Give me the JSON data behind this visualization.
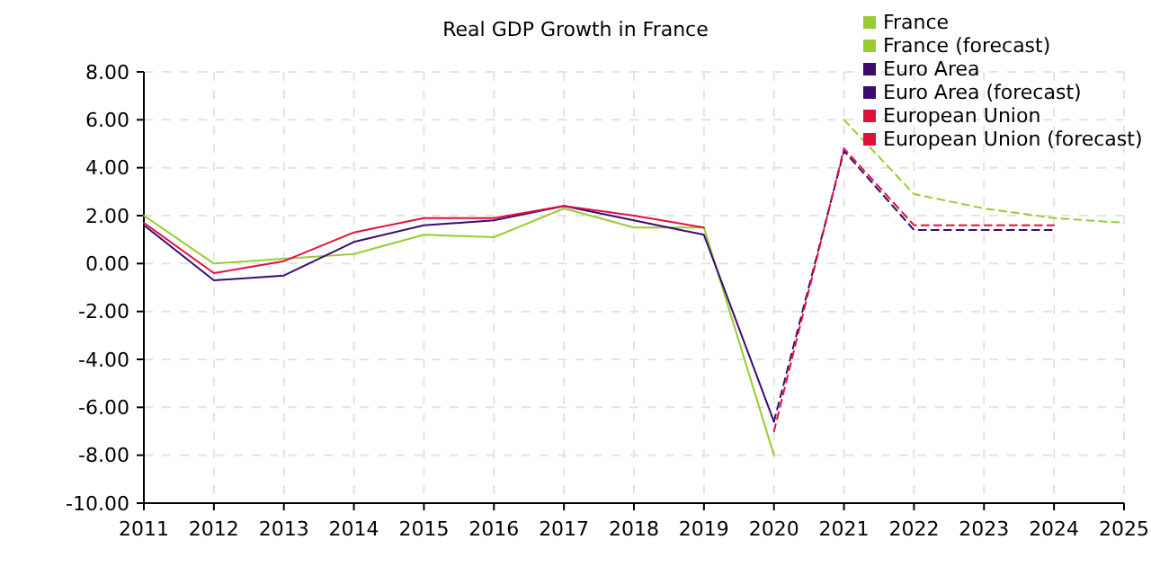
{
  "chart_data": {
    "type": "line",
    "title": "Real GDP Growth in France",
    "xlim": [
      2011,
      2025
    ],
    "xticks": [
      2011,
      2012,
      2013,
      2014,
      2015,
      2016,
      2017,
      2018,
      2019,
      2020,
      2021,
      2022,
      2023,
      2024,
      2025
    ],
    "ylim": [
      -10,
      8
    ],
    "yticks": [
      {
        "value": 8,
        "label": "8.00"
      },
      {
        "value": 6,
        "label": "6.00"
      },
      {
        "value": 4,
        "label": "4.00"
      },
      {
        "value": 2,
        "label": "2.00"
      },
      {
        "value": 0,
        "label": "0.00"
      },
      {
        "value": -2,
        "label": "-2.00"
      },
      {
        "value": -4,
        "label": "-4.00"
      },
      {
        "value": -6,
        "label": "-6.00"
      },
      {
        "value": -8,
        "label": "-8.00"
      },
      {
        "value": -10,
        "label": "-10.00"
      }
    ],
    "grid": true,
    "legend": "top right",
    "series": [
      {
        "name": "France",
        "color": "#99cc33",
        "line_style": "solid",
        "x": [
          2011,
          2012,
          2013,
          2014,
          2015,
          2016,
          2017,
          2018,
          2019,
          2020
        ],
        "values": [
          2.0,
          0.0,
          0.2,
          0.4,
          1.2,
          1.1,
          2.3,
          1.5,
          1.5,
          -8.0
        ]
      },
      {
        "name": "France (forecast)",
        "color": "#99cc33",
        "line_style": "dashed",
        "x": [
          2021,
          2022,
          2023,
          2024,
          2025
        ],
        "values": [
          6.0,
          2.9,
          2.3,
          1.9,
          1.7
        ]
      },
      {
        "name": "Euro Area",
        "color": "#3d0a6e",
        "line_style": "solid",
        "x": [
          2011,
          2012,
          2013,
          2014,
          2015,
          2016,
          2017,
          2018,
          2019,
          2020
        ],
        "values": [
          1.6,
          -0.7,
          -0.5,
          0.9,
          1.6,
          1.8,
          2.4,
          1.8,
          1.2,
          -6.6
        ]
      },
      {
        "name": "Euro Area (forecast)",
        "color": "#3d0a6e",
        "line_style": "dashed",
        "x": [
          2020,
          2021,
          2022,
          2023,
          2024
        ],
        "values": [
          -6.6,
          4.7,
          1.4,
          1.4,
          1.4
        ]
      },
      {
        "name": "European Union",
        "color": "#e0103e",
        "line_style": "solid",
        "x": [
          2011,
          2012,
          2013,
          2014,
          2015,
          2016,
          2017,
          2018,
          2019
        ],
        "values": [
          1.7,
          -0.4,
          0.1,
          1.3,
          1.9,
          1.9,
          2.4,
          2.0,
          1.5
        ]
      },
      {
        "name": "European Union (forecast)",
        "color": "#e0103e",
        "line_style": "dashed",
        "x": [
          2020,
          2021,
          2022,
          2023,
          2024
        ],
        "values": [
          -7.0,
          4.8,
          1.6,
          1.6,
          1.6
        ]
      }
    ]
  }
}
